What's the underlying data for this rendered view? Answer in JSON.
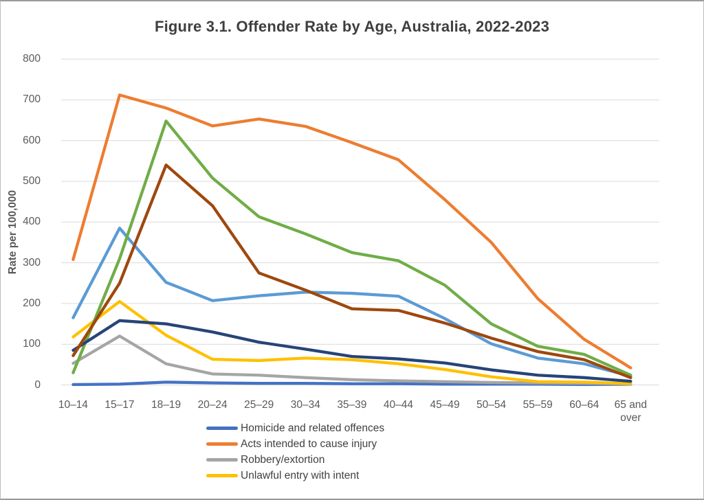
{
  "header": {
    "title": "Figure 3.1. Offender Rate by Age, Australia, 2022-2023"
  },
  "chart_data": {
    "type": "line",
    "title": "Figure 3.1. Offender Rate by Age, Australia, 2022-2023",
    "xlabel": "",
    "ylabel": "Rate per 100,000",
    "ylim": [
      0,
      800
    ],
    "y_ticks": [
      0,
      100,
      200,
      300,
      400,
      500,
      600,
      700,
      800
    ],
    "grid": true,
    "legend_position": "bottom",
    "categories": [
      "10–14",
      "15–17",
      "18–19",
      "20–24",
      "25–29",
      "30–34",
      "35–39",
      "40–44",
      "45–49",
      "50–54",
      "55–59",
      "60–64",
      "65 and over"
    ],
    "series": [
      {
        "name": "Homicide and related offences",
        "color": "#4472C4",
        "in_legend": true,
        "values": [
          1,
          2,
          7,
          5,
          4,
          4,
          3,
          3,
          2,
          2,
          2,
          1,
          2
        ]
      },
      {
        "name": "Acts intended to cause injury",
        "color": "#ED7D31",
        "in_legend": true,
        "values": [
          308,
          712,
          680,
          636,
          653,
          635,
          595,
          553,
          455,
          350,
          212,
          112,
          42
        ]
      },
      {
        "name": "Robbery/extortion",
        "color": "#A5A5A5",
        "in_legend": true,
        "values": [
          53,
          120,
          52,
          27,
          24,
          18,
          13,
          10,
          8,
          6,
          5,
          4,
          3
        ]
      },
      {
        "name": "Unlawful entry with intent",
        "color": "#FFC000",
        "in_legend": true,
        "values": [
          118,
          205,
          122,
          63,
          60,
          66,
          62,
          52,
          38,
          20,
          8,
          7,
          3
        ]
      },
      {
        "name": "Unlabelled series (light blue)",
        "color": "#5B9BD5",
        "in_legend": false,
        "values": [
          165,
          385,
          252,
          207,
          219,
          228,
          225,
          218,
          163,
          101,
          66,
          52,
          21
        ]
      },
      {
        "name": "Unlabelled series (green)",
        "color": "#70AD47",
        "in_legend": false,
        "values": [
          30,
          310,
          648,
          508,
          413,
          371,
          325,
          305,
          245,
          150,
          95,
          75,
          24
        ]
      },
      {
        "name": "Unlabelled series (dark navy)",
        "color": "#264478",
        "in_legend": false,
        "values": [
          85,
          158,
          150,
          130,
          105,
          88,
          70,
          64,
          54,
          37,
          24,
          18,
          9
        ]
      },
      {
        "name": "Unlabelled series (brown)",
        "color": "#9E480E",
        "in_legend": false,
        "values": [
          72,
          250,
          540,
          440,
          275,
          233,
          187,
          183,
          152,
          115,
          82,
          62,
          18
        ]
      }
    ],
    "legend": [
      {
        "label": "Homicide and related offences",
        "color": "#4472C4"
      },
      {
        "label": "Acts intended to cause injury",
        "color": "#ED7D31"
      },
      {
        "label": "Robbery/extortion",
        "color": "#A5A5A5"
      },
      {
        "label": "Unlawful entry with intent",
        "color": "#FFC000"
      }
    ],
    "gridline_color": "#d9d9d9",
    "text_color": "#595959"
  }
}
